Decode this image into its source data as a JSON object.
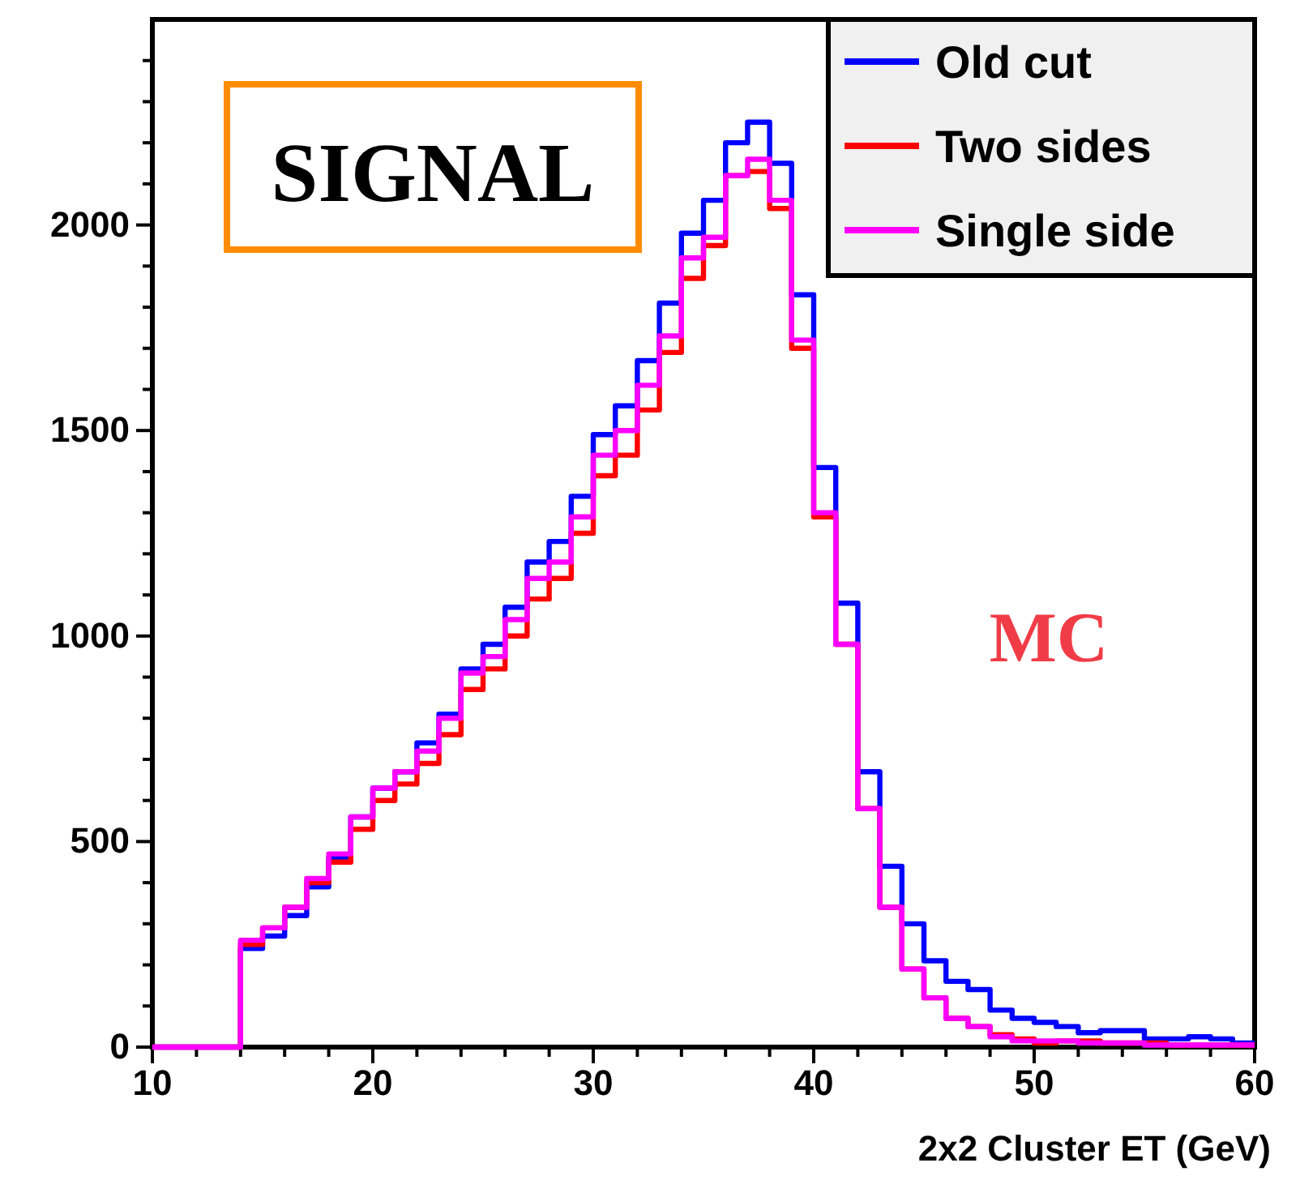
{
  "chart_data": {
    "type": "histogram",
    "xlabel": "2x2 Cluster ET (GeV)",
    "annotations": [
      "SIGNAL",
      "MC"
    ],
    "bins": [
      10,
      11,
      12,
      13,
      14,
      15,
      16,
      17,
      18,
      19,
      20,
      21,
      22,
      23,
      24,
      25,
      26,
      27,
      28,
      29,
      30,
      31,
      32,
      33,
      34,
      35,
      36,
      37,
      38,
      39,
      40,
      41,
      42,
      43,
      44,
      45,
      46,
      47,
      48,
      49,
      50,
      51,
      52,
      53,
      54,
      55,
      56,
      57,
      58,
      59,
      60
    ],
    "series": [
      {
        "name": "Old cut",
        "color": "#0000ff",
        "values": [
          0,
          0,
          0,
          0,
          240,
          270,
          320,
          390,
          460,
          560,
          630,
          670,
          740,
          810,
          920,
          980,
          1070,
          1180,
          1230,
          1340,
          1490,
          1560,
          1670,
          1810,
          1980,
          2060,
          2200,
          2250,
          2150,
          1830,
          1410,
          1080,
          670,
          440,
          300,
          210,
          160,
          140,
          90,
          70,
          60,
          50,
          35,
          40,
          40,
          20,
          20,
          25,
          20,
          10
        ]
      },
      {
        "name": "Two sides",
        "color": "#ff0000",
        "values": [
          0,
          0,
          0,
          0,
          250,
          290,
          340,
          400,
          450,
          530,
          600,
          640,
          690,
          760,
          870,
          920,
          1000,
          1090,
          1140,
          1250,
          1390,
          1440,
          1550,
          1690,
          1870,
          1950,
          2120,
          2130,
          2040,
          1700,
          1290,
          980,
          580,
          340,
          190,
          120,
          70,
          50,
          30,
          20,
          10,
          15,
          15,
          10,
          10,
          10,
          5,
          5,
          5,
          5
        ]
      },
      {
        "name": "Single side",
        "color": "#ff00ff",
        "values": [
          0,
          0,
          0,
          0,
          260,
          290,
          340,
          410,
          470,
          560,
          630,
          670,
          720,
          800,
          910,
          950,
          1040,
          1140,
          1180,
          1290,
          1440,
          1500,
          1610,
          1730,
          1920,
          1970,
          2120,
          2160,
          2060,
          1720,
          1300,
          980,
          580,
          340,
          190,
          120,
          70,
          50,
          25,
          15,
          15,
          15,
          10,
          10,
          10,
          5,
          5,
          5,
          5,
          5
        ]
      }
    ],
    "xlim": [
      10,
      60
    ],
    "xticks": [
      10,
      {
        "value": 12,
        "label": null
      },
      {
        "value": 14,
        "label": null
      },
      {
        "value": 16,
        "label": null
      },
      {
        "value": 18,
        "label": null
      },
      20,
      {
        "value": 22,
        "label": null
      },
      {
        "value": 24,
        "label": null
      },
      {
        "value": 26,
        "label": null
      },
      {
        "value": 28,
        "label": null
      },
      30,
      {
        "value": 32,
        "label": null
      },
      {
        "value": 34,
        "label": null
      },
      {
        "value": 36,
        "label": null
      },
      {
        "value": 38,
        "label": null
      },
      40,
      {
        "value": 42,
        "label": null
      },
      {
        "value": 44,
        "label": null
      },
      {
        "value": 46,
        "label": null
      },
      {
        "value": 48,
        "label": null
      },
      50,
      {
        "value": 52,
        "label": null
      },
      {
        "value": 54,
        "label": null
      },
      {
        "value": 56,
        "label": null
      },
      {
        "value": 58,
        "label": null
      },
      60
    ],
    "ylim": [
      0,
      2500
    ],
    "yticks": [
      0,
      {
        "value": 100,
        "label": null
      },
      {
        "value": 200,
        "label": null
      },
      {
        "value": 300,
        "label": null
      },
      {
        "value": 400,
        "label": null
      },
      500,
      {
        "value": 600,
        "label": null
      },
      {
        "value": 700,
        "label": null
      },
      {
        "value": 800,
        "label": null
      },
      {
        "value": 900,
        "label": null
      },
      1000,
      {
        "value": 1100,
        "label": null
      },
      {
        "value": 1200,
        "label": null
      },
      {
        "value": 1300,
        "label": null
      },
      {
        "value": 1400,
        "label": null
      },
      1500,
      {
        "value": 1600,
        "label": null
      },
      {
        "value": 1700,
        "label": null
      },
      {
        "value": 1800,
        "label": null
      },
      {
        "value": 1900,
        "label": null
      },
      2000,
      {
        "value": 2100,
        "label": null
      },
      {
        "value": 2200,
        "label": null
      },
      {
        "value": 2300,
        "label": null
      },
      {
        "value": 2400,
        "label": null
      }
    ],
    "legend": "top right",
    "line_style": "solid"
  }
}
